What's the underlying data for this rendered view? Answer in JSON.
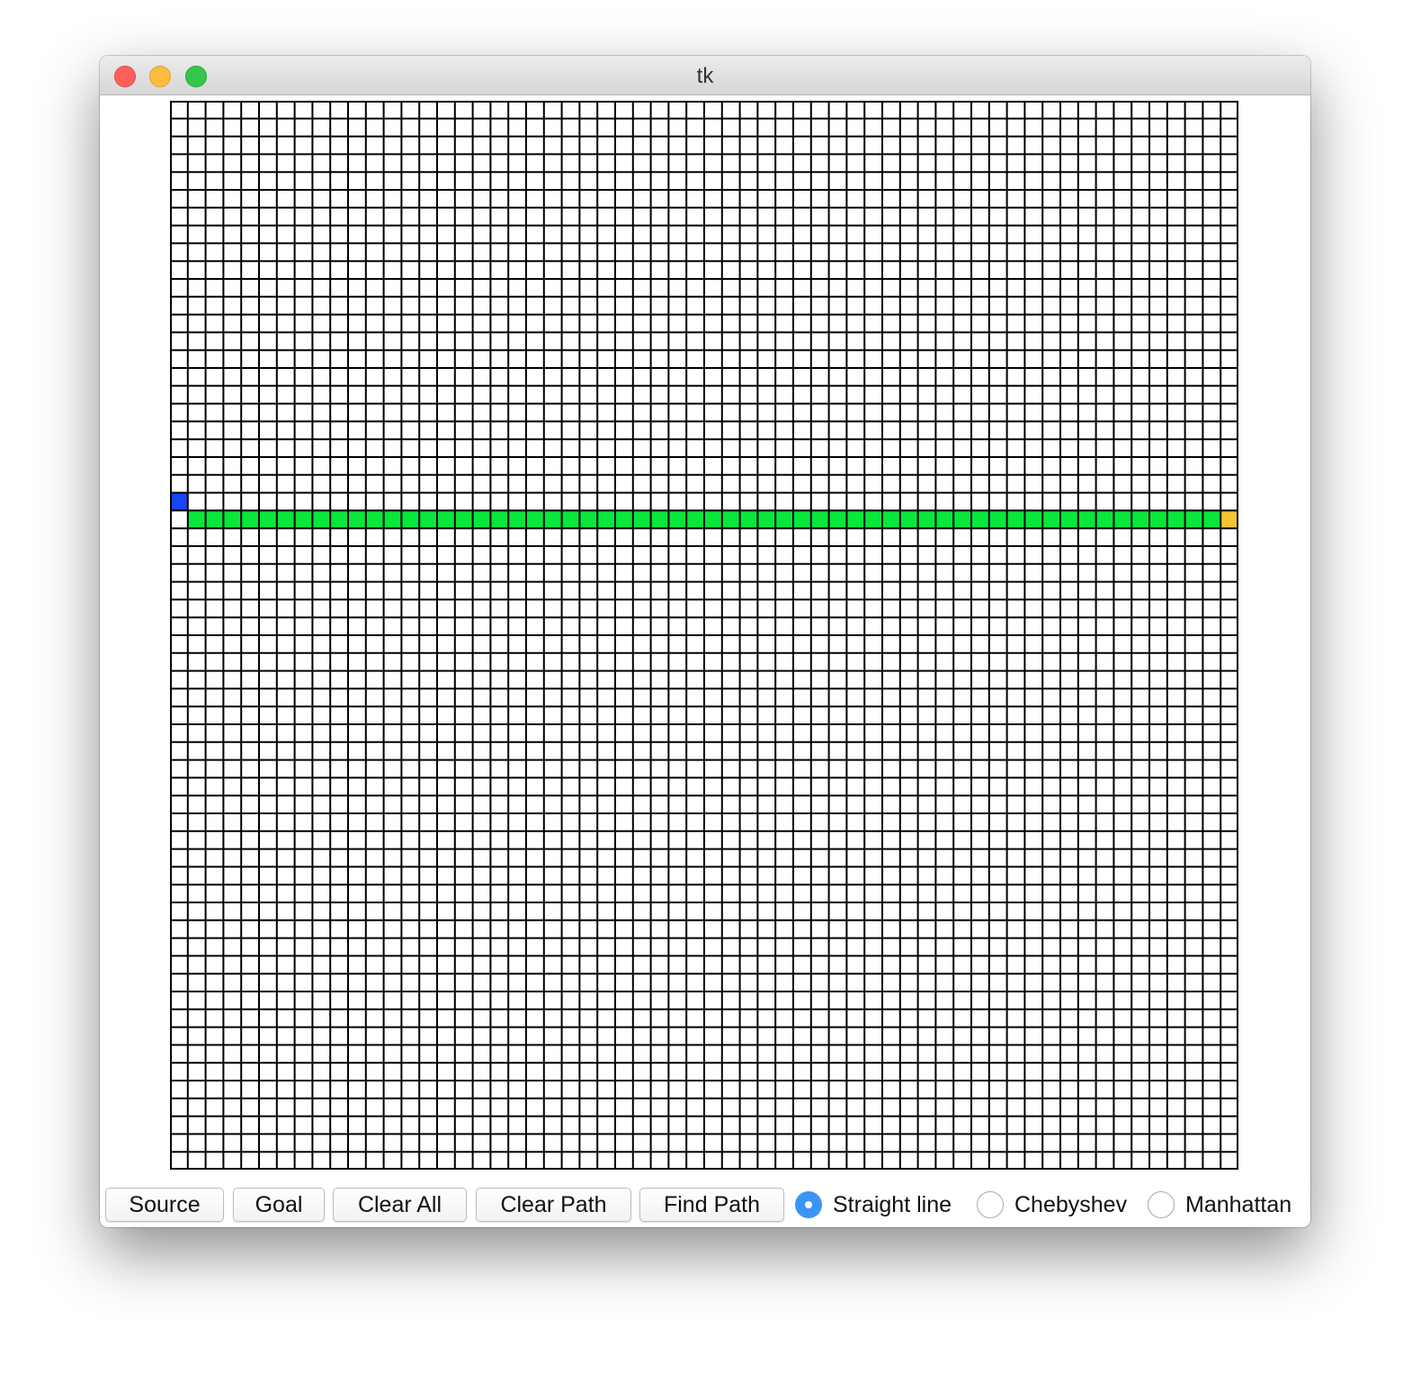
{
  "window": {
    "title": "tk"
  },
  "grid": {
    "rows": 60,
    "cols": 60,
    "source": {
      "row": 22,
      "col": 0
    },
    "goal": {
      "row": 23,
      "col": 59
    },
    "path": {
      "row": 23,
      "col_start": 1,
      "col_end": 58
    },
    "colors": {
      "line": "#000000",
      "background": "#ffffff",
      "source": "#1a45f2",
      "goal": "#f5c434",
      "path": "#0ae63c"
    }
  },
  "toolbar": {
    "buttons": {
      "source": "Source",
      "goal": "Goal",
      "clear_all": "Clear All",
      "clear_path": "Clear Path",
      "find_path": "Find Path"
    },
    "heuristics": {
      "selected": "Straight line",
      "straight_line": "Straight line",
      "chebyshev": "Chebyshev",
      "manhattan": "Manhattan"
    }
  }
}
